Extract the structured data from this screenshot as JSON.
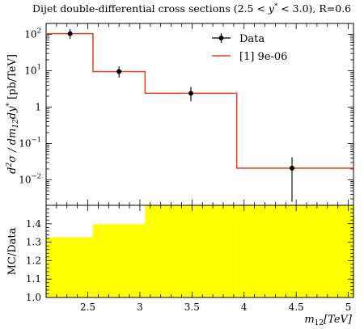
{
  "chart_data": [
    {
      "type": "line",
      "title": "Dijet double-differential cross sections (2.5 < y* < 3.0), R=0.6",
      "title_parts": {
        "prefix": "Dijet double-differential cross sections (2.5 < ",
        "ystar": "y",
        "sup": "*",
        "suffix": " < 3.0), R=0.6"
      },
      "ylabel": "d²σ/dm₁₂dy* [pb/TeV]",
      "ylabel_parts": {
        "d": "d",
        "sq": "2",
        "sigma": "σ / ",
        "dm": "dm",
        "sub": "12",
        "dy": "dy",
        "star": "*",
        "unit": " [pb/TeV]"
      },
      "yscale": "log",
      "ylim": [
        0.002,
        200
      ],
      "xlim": [
        2.1,
        5.05
      ],
      "yticks": [
        {
          "value": 100,
          "base": "10",
          "exp": "2"
        },
        {
          "value": 10,
          "base": "10",
          "exp": "1"
        },
        {
          "value": 1,
          "base": "1",
          "exp": ""
        },
        {
          "value": 0.1,
          "base": "10",
          "exp": "−1"
        },
        {
          "value": 0.01,
          "base": "10",
          "exp": "−2"
        }
      ],
      "legend": {
        "placement": "top-right"
      },
      "series": [
        {
          "name": "Data",
          "color": "#000000",
          "points": [
            {
              "x": 2.33,
              "y": 105,
              "err_lo": 75,
              "err_hi": 140
            },
            {
              "x": 2.8,
              "y": 9.5,
              "err_lo": 6.5,
              "err_hi": 13
            },
            {
              "x": 3.49,
              "y": 2.4,
              "err_lo": 1.45,
              "err_hi": 3.6
            },
            {
              "x": 4.46,
              "y": 0.021,
              "err_lo": 0.0025,
              "err_hi": 0.042
            }
          ]
        },
        {
          "name": "[1] 9e-06",
          "color": "#e8401c",
          "bins": [
            {
              "x_low": 2.1,
              "x_high": 2.55,
              "y": 105
            },
            {
              "x_low": 2.55,
              "x_high": 3.05,
              "y": 9.5
            },
            {
              "x_low": 3.05,
              "x_high": 3.93,
              "y": 2.4
            },
            {
              "x_low": 3.93,
              "x_high": 5.05,
              "y": 0.021
            }
          ]
        }
      ]
    },
    {
      "type": "area",
      "ylabel": "MC/Data",
      "ylim": [
        1.0,
        1.5
      ],
      "xlim": [
        2.1,
        5.05
      ],
      "yticks": [
        "1.0",
        "1.1",
        "1.2",
        "1.3",
        "1.4"
      ],
      "xticks": [
        "2.5",
        "3",
        "3.5",
        "4",
        "4.5",
        "5"
      ],
      "xlabel_parts": {
        "m": "m",
        "sub": "12",
        "unit": "[TeV]"
      },
      "fill_color": "#ffff00",
      "bins": [
        {
          "x_low": 2.1,
          "x_high": 2.55,
          "y": 1.327
        },
        {
          "x_low": 2.55,
          "x_high": 3.05,
          "y": 1.398
        },
        {
          "x_low": 3.05,
          "x_high": 3.93,
          "y": 1.5
        },
        {
          "x_low": 3.93,
          "x_high": 5.05,
          "y": 1.5
        }
      ]
    }
  ]
}
